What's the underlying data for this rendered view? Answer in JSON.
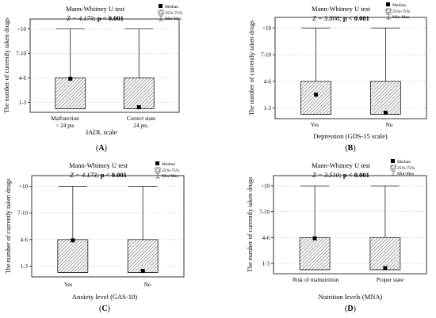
{
  "legend": {
    "median": "Median",
    "iqr": "25%-75%",
    "minmax": "Min-Max"
  },
  "chart_data": [
    {
      "type": "box",
      "panel_letter": "(A)",
      "test_name": "Mann-Whitney U test",
      "stat": "Z = 4.173;",
      "p": "p < 0.001",
      "ylabel": "The number of currently taken drugs",
      "xlabel": "IADL scale",
      "ytick_labels": [
        "1-3",
        "4-6",
        "7-10",
        ">10"
      ],
      "categories": [
        "Malfunction\n< 24 pts",
        "Correct state\n24 pts."
      ],
      "boxes": [
        {
          "min": 1,
          "q1": 1,
          "median": 2,
          "q3": 2,
          "max": 4
        },
        {
          "min": 1,
          "q1": 1,
          "median": 1,
          "q3": 2,
          "max": 4
        }
      ]
    },
    {
      "type": "box",
      "panel_letter": "(B)",
      "test_name": "Mann-Whitney U test",
      "stat": "Z = 3.806;",
      "p": "p < 0.001",
      "ylabel": "The number of currently taken drugs",
      "xlabel": "Depression (GDS-15 scale)",
      "ytick_labels": [
        "1-3",
        "4-6",
        "7-10",
        ">10"
      ],
      "categories": [
        "Yes",
        "No"
      ],
      "boxes": [
        {
          "min": 1,
          "q1": 1,
          "median": 1.5,
          "q3": 2,
          "max": 4
        },
        {
          "min": 1,
          "q1": 1,
          "median": 1,
          "q3": 2,
          "max": 4
        }
      ]
    },
    {
      "type": "box",
      "panel_letter": "(C)",
      "test_name": "Mann-Whitney U test",
      "stat": "Z = 4.173;",
      "p": "p < 0.001",
      "ylabel": "The number of currently taken drugs",
      "xlabel": "Anxiety level (GAS-10)",
      "ytick_labels": [
        "1-3",
        "4-6",
        "7-10",
        ">10"
      ],
      "categories": [
        "Yes",
        "No"
      ],
      "boxes": [
        {
          "min": 1,
          "q1": 1,
          "median": 2,
          "q3": 2,
          "max": 4
        },
        {
          "min": 1,
          "q1": 1,
          "median": 1,
          "q3": 2,
          "max": 4
        }
      ]
    },
    {
      "type": "box",
      "panel_letter": "(D)",
      "test_name": "Mann-Whitney U test",
      "stat": "Z = 3.510;",
      "p": "p < 0.001",
      "ylabel": "The number of currently taken drugs",
      "xlabel": "Nutrition levels (MNA)",
      "ytick_labels": [
        "1-3",
        "4-6",
        "7-10",
        ">10"
      ],
      "categories": [
        "Risk of malnutrition",
        "Proper state"
      ],
      "boxes": [
        {
          "min": 1,
          "q1": 1,
          "median": 2,
          "q3": 2,
          "max": 4
        },
        {
          "min": 1,
          "q1": 1,
          "median": 1,
          "q3": 2,
          "max": 4
        }
      ]
    }
  ]
}
